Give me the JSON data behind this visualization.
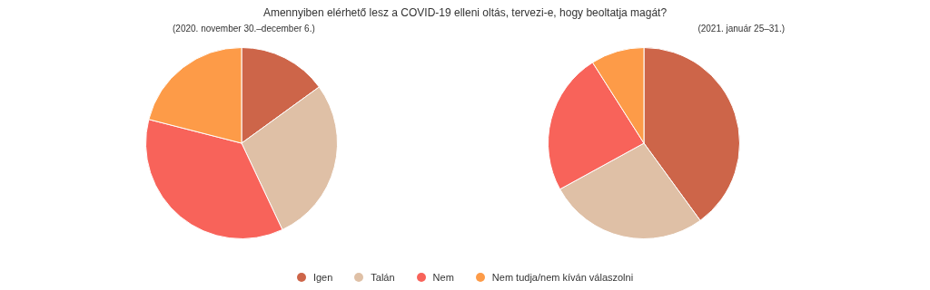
{
  "chart_data": {
    "type": "pie",
    "title": "Amennyiben elérhető lesz a COVID-19 elleni oltás, tervezi-e, hogy beoltatja magát?",
    "categories": [
      "Igen",
      "Talán",
      "Nem",
      "Nem tudja/nem kíván válaszolni"
    ],
    "colors": [
      "#cd6549",
      "#dfc0a6",
      "#f8635a",
      "#fd9b48"
    ],
    "legend": "bottom",
    "series": [
      {
        "name": "(2020. november 30.–december 6.)",
        "values": [
          15,
          28,
          36,
          21
        ]
      },
      {
        "name": "(2021. január 25–31.)",
        "values": [
          40,
          27,
          24,
          9
        ]
      }
    ]
  }
}
